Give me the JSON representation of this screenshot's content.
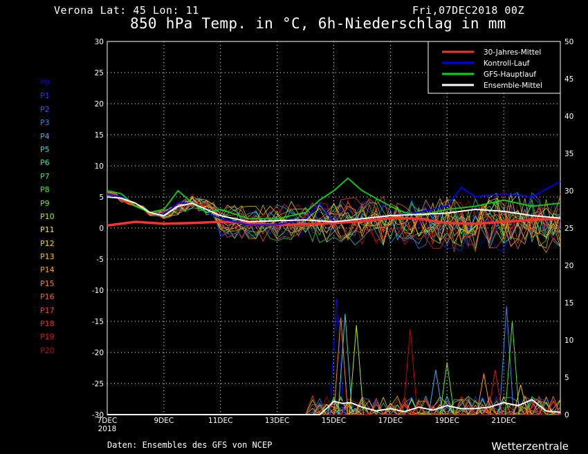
{
  "header": {
    "location": "Verona   Lat: 45 Lon: 11",
    "run": "Fri,07DEC2018 00Z",
    "title": "850 hPa Temp. in °C, 6h-Niederschlag in mm"
  },
  "footer": {
    "source": "Daten: Ensembles des GFS von NCEP",
    "brand": "Wetterzentrale"
  },
  "members": [
    {
      "label": "P0",
      "color": "#0000ff"
    },
    {
      "label": "P1",
      "color": "#1a3cff"
    },
    {
      "label": "P2",
      "color": "#2060ff"
    },
    {
      "label": "P3",
      "color": "#2a8cff"
    },
    {
      "label": "P4",
      "color": "#30b4ff"
    },
    {
      "label": "P5",
      "color": "#30d8e0"
    },
    {
      "label": "P6",
      "color": "#30e8a0"
    },
    {
      "label": "P7",
      "color": "#30f060"
    },
    {
      "label": "P8",
      "color": "#40f020"
    },
    {
      "label": "P9",
      "color": "#70f000"
    },
    {
      "label": "P10",
      "color": "#b0f000"
    },
    {
      "label": "P11",
      "color": "#f0f000"
    },
    {
      "label": "P12",
      "color": "#f8d800"
    },
    {
      "label": "P13",
      "color": "#ffc000"
    },
    {
      "label": "P14",
      "color": "#ffa000"
    },
    {
      "label": "P15",
      "color": "#ff8020"
    },
    {
      "label": "P16",
      "color": "#ff6020"
    },
    {
      "label": "P17",
      "color": "#ff4020"
    },
    {
      "label": "P18",
      "color": "#ff2020"
    },
    {
      "label": "P19",
      "color": "#ee1010"
    },
    {
      "label": "P20",
      "color": "#d00000"
    }
  ],
  "legend": [
    {
      "label": "30-Jahres-Mittel",
      "color": "#ff3030"
    },
    {
      "label": "Kontroll-Lauf",
      "color": "#0000ff"
    },
    {
      "label": "GFS-Hauptlauf",
      "color": "#00dd00"
    },
    {
      "label": "Ensemble-Mittel",
      "color": "#ffffff"
    }
  ],
  "chart_data": {
    "type": "line",
    "x_ticks": [
      "7DEC 2018",
      "9DEC",
      "11DEC",
      "13DEC",
      "15DEC",
      "17DEC",
      "19DEC",
      "21DEC"
    ],
    "x_range_days": [
      0,
      16
    ],
    "y_left": {
      "unit": "°C",
      "range": [
        -30,
        30
      ],
      "ticks": [
        30,
        25,
        20,
        15,
        10,
        5,
        0,
        -5,
        -10,
        -15,
        -20,
        -25,
        -30
      ]
    },
    "y_right": {
      "unit": "mm",
      "range": [
        0,
        50
      ],
      "ticks": [
        50,
        45,
        40,
        35,
        30,
        25,
        20,
        15,
        10,
        5,
        0
      ]
    },
    "grid": true,
    "legend_position": "top-right",
    "series": [
      {
        "name": "30-Jahres-Mittel",
        "axis": "left",
        "x": [
          0,
          1,
          2,
          3,
          4,
          5,
          6,
          7,
          8,
          9,
          10,
          11,
          12,
          13,
          14,
          15,
          16
        ],
        "y": [
          0.4,
          1.0,
          0.7,
          0.8,
          1.0,
          0.8,
          0.5,
          0.6,
          0.8,
          1.1,
          1.6,
          1.5,
          0.8,
          0.7,
          1.0,
          1.3,
          1.5
        ]
      },
      {
        "name": "Kontroll-Lauf",
        "axis": "left",
        "x": [
          0,
          0.5,
          1,
          1.5,
          2,
          2.5,
          3,
          3.5,
          4,
          5,
          6,
          7,
          7.5,
          8,
          9,
          10,
          11,
          12,
          12.5,
          13,
          14,
          15,
          16
        ],
        "y": [
          5.5,
          5.0,
          4.0,
          2.5,
          2.2,
          4.0,
          4.0,
          2.5,
          1.5,
          0.5,
          0.5,
          1.5,
          4.0,
          1.0,
          1.5,
          2.0,
          2.5,
          3.5,
          6.5,
          5.0,
          5.5,
          5.0,
          7.5
        ]
      },
      {
        "name": "GFS-Hauptlauf",
        "axis": "left",
        "x": [
          0,
          0.5,
          1,
          1.5,
          2,
          2.5,
          3,
          3.5,
          4,
          5,
          6,
          7,
          7.5,
          8,
          8.5,
          9,
          10,
          10.5,
          11,
          12,
          13,
          14,
          15,
          16
        ],
        "y": [
          6.0,
          5.5,
          3.5,
          2.5,
          3.0,
          6.0,
          4.0,
          2.5,
          3.0,
          1.5,
          1.5,
          2.5,
          4.5,
          6.0,
          8.0,
          6.0,
          3.5,
          2.5,
          2.0,
          3.0,
          3.5,
          4.5,
          3.5,
          4.0
        ]
      },
      {
        "name": "Ensemble-Mittel",
        "axis": "left",
        "x": [
          0,
          0.5,
          1,
          1.5,
          2,
          2.5,
          3,
          3.5,
          4,
          5,
          6,
          7,
          8,
          9,
          10,
          11,
          12,
          13,
          14,
          15,
          16
        ],
        "y": [
          5.0,
          4.8,
          4.0,
          2.5,
          2.0,
          3.5,
          4.0,
          3.0,
          2.0,
          1.0,
          1.2,
          1.3,
          1.0,
          1.5,
          2.0,
          2.2,
          2.4,
          3.0,
          2.7,
          2.0,
          1.6
        ]
      },
      {
        "name": "Ensemble-Mittel",
        "axis": "right",
        "x": [
          0,
          7.5,
          7.8,
          8,
          8.3,
          8.6,
          9,
          9.5,
          10,
          10.5,
          11,
          11.5,
          12,
          12.5,
          13,
          13.5,
          14,
          14.5,
          15,
          15.5,
          16
        ],
        "y": [
          0,
          0,
          1,
          1.8,
          1.5,
          1.6,
          1.0,
          0.5,
          0.8,
          0.4,
          1.0,
          0.6,
          1.2,
          0.8,
          0.8,
          1.0,
          1.6,
          1.2,
          2.0,
          0.5,
          0.3
        ]
      }
    ],
    "precip_peaks": [
      {
        "x": 8.1,
        "y": 15.5
      },
      {
        "x": 8.4,
        "y": 13.5
      },
      {
        "x": 8.8,
        "y": 12.0
      },
      {
        "x": 8.25,
        "y": 13.0
      },
      {
        "x": 10.7,
        "y": 11.5
      },
      {
        "x": 11.6,
        "y": 6.0
      },
      {
        "x": 12.0,
        "y": 7.0
      },
      {
        "x": 13.3,
        "y": 5.5
      },
      {
        "x": 13.7,
        "y": 6.0
      },
      {
        "x": 14.1,
        "y": 14.5
      },
      {
        "x": 14.3,
        "y": 12.5
      },
      {
        "x": 14.6,
        "y": 4.0
      },
      {
        "x": 15.1,
        "y": 2.0
      }
    ]
  }
}
